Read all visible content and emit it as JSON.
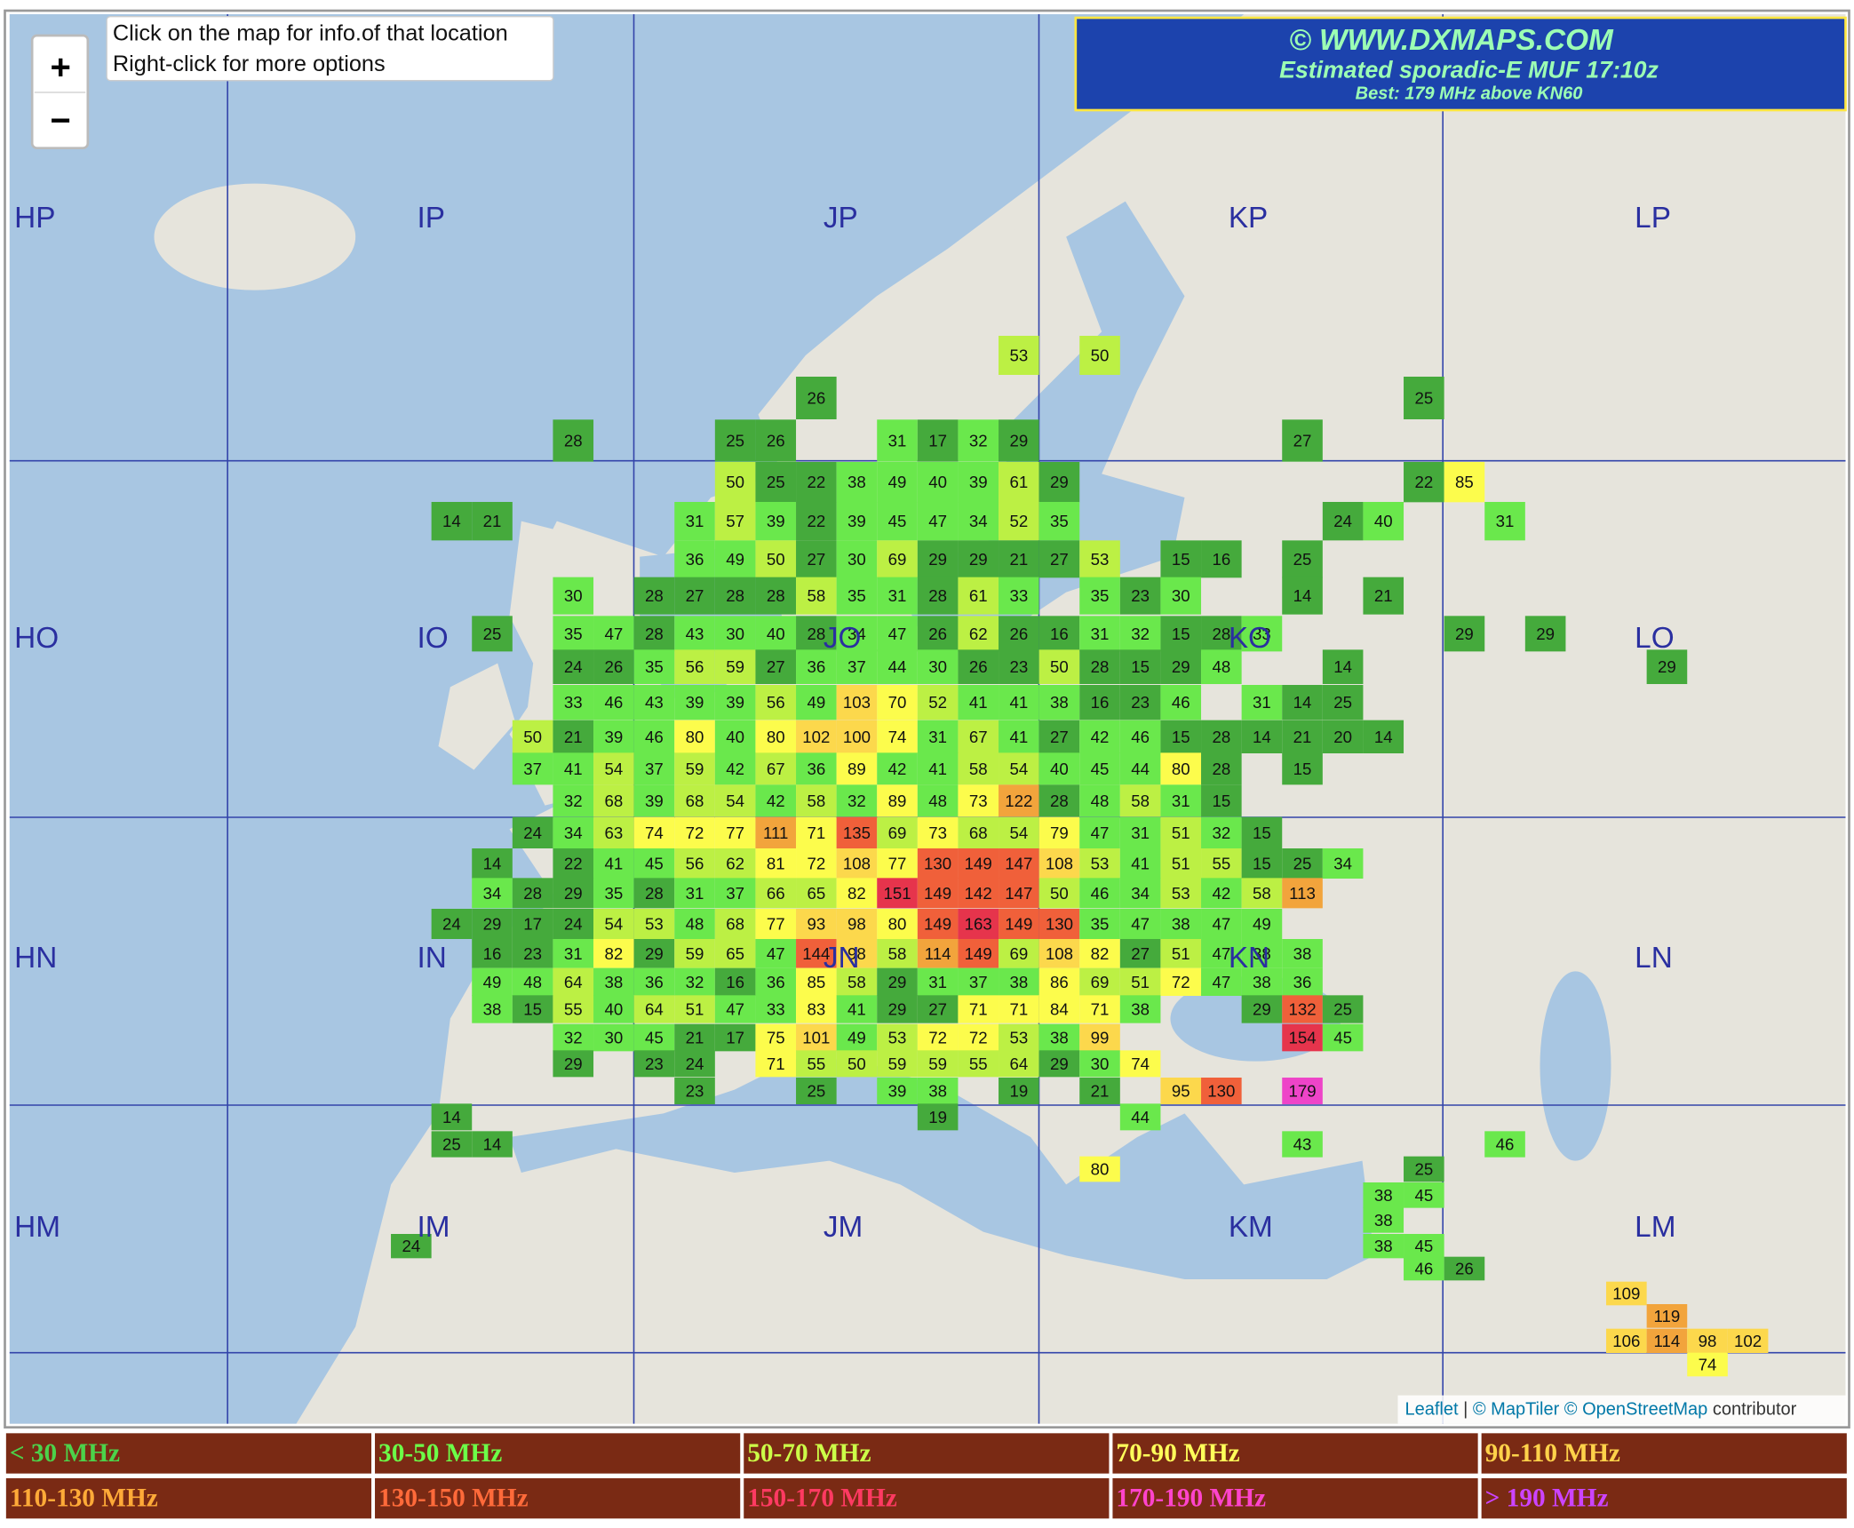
{
  "header": {
    "site": "© WWW.DXMAPS.COM",
    "title": "Estimated sporadic-E MUF 17:10z",
    "best": "Best: 179 MHz above KN60"
  },
  "tooltip": [
    "Click on the map for info.of that location",
    "Right-click for more options"
  ],
  "zoom": {
    "in": "+",
    "out": "−"
  },
  "attribution": {
    "leaflet": "Leaflet",
    "separator": "|",
    "maptiler": "© MapTiler",
    "osm": "© OpenStreetMap",
    "suffix": "contributor"
  },
  "grid_labels": [
    [
      "HP",
      "IP",
      "JP",
      "KP",
      "LP"
    ],
    [
      "HO",
      "IO",
      "JO",
      "KO",
      "LO"
    ],
    [
      "HN",
      "IN",
      "JN",
      "KN",
      "LN"
    ],
    [
      "HM",
      "IM",
      "JM",
      "KM",
      "LM"
    ]
  ],
  "legend": [
    {
      "label": "< 30 MHz",
      "color": "#4cd24a",
      "fill": "#45aa3c"
    },
    {
      "label": "30-50 MHz",
      "color": "#6cff48",
      "fill": "#6ae84c"
    },
    {
      "label": "50-70 MHz",
      "color": "#ccff48",
      "fill": "#bcf044"
    },
    {
      "label": "70-90 MHz",
      "color": "#ffff5a",
      "fill": "#fcfc4c"
    },
    {
      "label": "90-110 MHz",
      "color": "#ffd24a",
      "fill": "#fcd84c"
    },
    {
      "label": "110-130 MHz",
      "color": "#ffaa38",
      "fill": "#f2a43c"
    },
    {
      "label": "130-150 MHz",
      "color": "#ff6a3a",
      "fill": "#f0603a"
    },
    {
      "label": "150-170 MHz",
      "color": "#ff3a62",
      "fill": "#e6344c"
    },
    {
      "label": "170-190 MHz",
      "color": "#ff44cc",
      "fill": "#ee44c8"
    },
    {
      "label": "> 190 MHz",
      "color": "#cc44ff",
      "fill": "#bb44ee"
    }
  ],
  "cells": {
    "rows": [
      [
        null,
        null,
        null,
        null,
        null,
        null,
        null,
        null,
        null,
        null,
        null,
        null,
        null,
        null,
        null,
        53,
        null,
        50,
        null,
        null,
        null,
        null,
        null,
        null,
        null,
        null,
        null,
        null,
        null,
        null,
        null,
        null,
        null,
        null
      ],
      [
        null,
        null,
        null,
        null,
        null,
        null,
        null,
        null,
        null,
        null,
        26,
        null,
        null,
        null,
        null,
        null,
        null,
        null,
        null,
        null,
        null,
        null,
        null,
        null,
        null,
        25,
        null,
        null,
        null,
        null,
        null,
        null,
        null,
        null
      ],
      [
        null,
        null,
        null,
        null,
        28,
        null,
        null,
        null,
        25,
        26,
        null,
        null,
        31,
        17,
        32,
        29,
        null,
        null,
        null,
        null,
        null,
        null,
        27,
        null,
        null,
        null,
        null,
        null,
        null,
        null,
        null,
        null,
        null,
        null
      ],
      [
        null,
        null,
        null,
        null,
        null,
        null,
        null,
        null,
        50,
        25,
        22,
        38,
        49,
        40,
        39,
        61,
        29,
        null,
        null,
        null,
        null,
        null,
        null,
        null,
        null,
        22,
        85,
        null,
        null,
        null,
        null,
        null,
        null,
        null
      ],
      [
        null,
        14,
        21,
        null,
        null,
        null,
        null,
        31,
        57,
        39,
        22,
        39,
        45,
        47,
        34,
        52,
        35,
        null,
        null,
        null,
        null,
        null,
        null,
        24,
        40,
        null,
        null,
        31,
        null,
        null,
        null,
        null,
        null,
        null
      ],
      [
        null,
        null,
        null,
        null,
        null,
        null,
        null,
        36,
        49,
        50,
        27,
        30,
        69,
        29,
        29,
        21,
        27,
        53,
        null,
        15,
        16,
        null,
        25,
        null,
        null,
        null,
        null,
        null,
        null,
        null,
        null,
        null,
        null,
        null
      ],
      [
        null,
        null,
        null,
        null,
        30,
        null,
        28,
        27,
        28,
        28,
        58,
        35,
        31,
        28,
        61,
        33,
        null,
        35,
        23,
        30,
        null,
        null,
        14,
        null,
        21,
        null,
        null,
        null,
        null,
        null,
        null,
        null,
        null,
        null
      ],
      [
        null,
        null,
        25,
        null,
        35,
        47,
        28,
        43,
        30,
        40,
        28,
        34,
        47,
        26,
        62,
        26,
        16,
        31,
        32,
        15,
        28,
        33,
        null,
        null,
        null,
        null,
        29,
        null,
        29,
        null,
        null,
        null,
        null,
        null
      ],
      [
        null,
        null,
        null,
        null,
        24,
        26,
        35,
        56,
        59,
        27,
        36,
        37,
        44,
        30,
        26,
        23,
        50,
        28,
        15,
        29,
        48,
        null,
        null,
        14,
        null,
        null,
        null,
        null,
        null,
        null,
        null,
        29,
        null,
        null
      ],
      [
        null,
        null,
        null,
        null,
        33,
        46,
        43,
        39,
        39,
        56,
        49,
        103,
        70,
        52,
        41,
        41,
        38,
        16,
        23,
        46,
        null,
        31,
        14,
        25,
        null,
        null,
        null,
        null,
        null,
        null,
        null,
        null,
        null,
        null
      ],
      [
        null,
        null,
        null,
        50,
        21,
        39,
        46,
        80,
        40,
        80,
        102,
        100,
        74,
        31,
        67,
        41,
        27,
        42,
        46,
        15,
        28,
        14,
        21,
        20,
        14,
        null,
        null,
        null,
        null,
        null,
        null,
        null,
        null,
        null
      ],
      [
        null,
        null,
        null,
        37,
        41,
        54,
        37,
        59,
        42,
        67,
        36,
        89,
        42,
        41,
        58,
        54,
        40,
        45,
        44,
        80,
        28,
        null,
        15,
        null,
        null,
        null,
        null,
        null,
        null,
        null,
        null,
        null,
        null,
        null
      ],
      [
        null,
        null,
        null,
        null,
        32,
        68,
        39,
        68,
        54,
        42,
        58,
        32,
        89,
        48,
        73,
        122,
        28,
        48,
        58,
        31,
        15,
        null,
        null,
        null,
        null,
        null,
        null,
        null,
        null,
        null,
        null,
        null,
        null,
        null
      ],
      [
        null,
        null,
        null,
        24,
        34,
        63,
        74,
        72,
        77,
        111,
        71,
        135,
        69,
        73,
        68,
        54,
        79,
        47,
        31,
        51,
        32,
        15,
        null,
        null,
        null,
        null,
        null,
        null,
        null,
        null,
        null,
        null,
        null,
        null
      ],
      [
        null,
        null,
        14,
        null,
        22,
        41,
        45,
        56,
        62,
        81,
        72,
        108,
        77,
        130,
        149,
        147,
        108,
        53,
        41,
        51,
        55,
        15,
        25,
        34,
        null,
        null,
        null,
        null,
        null,
        null,
        null,
        null,
        null,
        null
      ],
      [
        null,
        null,
        34,
        28,
        29,
        35,
        28,
        31,
        37,
        66,
        65,
        82,
        151,
        149,
        142,
        147,
        50,
        46,
        34,
        53,
        42,
        58,
        113,
        null,
        null,
        null,
        null,
        null,
        null,
        null,
        null,
        null,
        null,
        null
      ],
      [
        null,
        24,
        29,
        17,
        24,
        54,
        53,
        48,
        68,
        77,
        93,
        98,
        80,
        149,
        163,
        149,
        130,
        35,
        47,
        38,
        47,
        49,
        null,
        null,
        null,
        null,
        null,
        null,
        null,
        null,
        null,
        null,
        null,
        null
      ],
      [
        null,
        null,
        16,
        23,
        31,
        82,
        29,
        59,
        65,
        47,
        144,
        98,
        58,
        114,
        149,
        69,
        108,
        82,
        27,
        51,
        47,
        38,
        38,
        null,
        null,
        null,
        null,
        null,
        null,
        null,
        null,
        null,
        null,
        null
      ],
      [
        null,
        null,
        49,
        48,
        64,
        38,
        36,
        32,
        16,
        36,
        85,
        58,
        29,
        31,
        37,
        38,
        86,
        69,
        51,
        72,
        47,
        38,
        36,
        null,
        null,
        null,
        null,
        null,
        null,
        null,
        null,
        null,
        null,
        null
      ],
      [
        null,
        null,
        38,
        15,
        55,
        40,
        64,
        51,
        47,
        33,
        83,
        41,
        29,
        27,
        71,
        71,
        84,
        71,
        38,
        null,
        null,
        29,
        132,
        25,
        null,
        null,
        null,
        null,
        null,
        null,
        null,
        null,
        null,
        null
      ],
      [
        null,
        null,
        null,
        null,
        32,
        30,
        45,
        21,
        17,
        75,
        101,
        49,
        53,
        72,
        72,
        53,
        38,
        99,
        null,
        null,
        null,
        null,
        154,
        45,
        null,
        null,
        null,
        null,
        null,
        null,
        null,
        null,
        null,
        null
      ],
      [
        null,
        null,
        null,
        null,
        29,
        null,
        23,
        24,
        null,
        71,
        55,
        50,
        59,
        59,
        55,
        64,
        29,
        30,
        74,
        null,
        null,
        null,
        null,
        null,
        null,
        null,
        null,
        null,
        null,
        null,
        null,
        null,
        null,
        null
      ],
      [
        null,
        null,
        null,
        null,
        null,
        null,
        null,
        23,
        null,
        null,
        25,
        null,
        39,
        38,
        null,
        19,
        null,
        21,
        null,
        95,
        130,
        null,
        179,
        null,
        null,
        null,
        null,
        null,
        null,
        null,
        null,
        null,
        null,
        null
      ],
      [
        null,
        14,
        null,
        null,
        null,
        null,
        null,
        null,
        null,
        null,
        null,
        null,
        null,
        19,
        null,
        null,
        null,
        null,
        44,
        null,
        null,
        null,
        null,
        null,
        null,
        null,
        null,
        null,
        null,
        null,
        null,
        null,
        null,
        null
      ],
      [
        null,
        25,
        14,
        null,
        null,
        null,
        null,
        null,
        null,
        null,
        null,
        null,
        null,
        null,
        null,
        null,
        null,
        null,
        null,
        null,
        null,
        null,
        43,
        null,
        null,
        null,
        null,
        46,
        null,
        null,
        null,
        null,
        null,
        null
      ],
      [
        null,
        null,
        null,
        null,
        null,
        null,
        null,
        null,
        null,
        null,
        null,
        null,
        null,
        null,
        null,
        null,
        null,
        80,
        null,
        null,
        null,
        null,
        null,
        null,
        null,
        25,
        null,
        null,
        null,
        null,
        null,
        null,
        null,
        null
      ],
      [
        null,
        null,
        null,
        null,
        null,
        null,
        null,
        null,
        null,
        null,
        null,
        null,
        null,
        null,
        null,
        null,
        null,
        null,
        null,
        null,
        null,
        null,
        null,
        null,
        38,
        45,
        null,
        null,
        null,
        null,
        null,
        null,
        null,
        null
      ],
      [
        null,
        null,
        null,
        null,
        null,
        null,
        null,
        null,
        null,
        null,
        null,
        null,
        null,
        null,
        null,
        null,
        null,
        null,
        null,
        null,
        null,
        null,
        null,
        null,
        38,
        null,
        null,
        null,
        null,
        null,
        null,
        null,
        null,
        null
      ],
      [
        24,
        null,
        null,
        null,
        null,
        null,
        null,
        null,
        null,
        null,
        null,
        null,
        null,
        null,
        null,
        null,
        null,
        null,
        null,
        null,
        null,
        null,
        null,
        null,
        38,
        45,
        null,
        null,
        null,
        null,
        null,
        null,
        null,
        null
      ],
      [
        null,
        null,
        null,
        null,
        null,
        null,
        null,
        null,
        null,
        null,
        null,
        null,
        null,
        null,
        null,
        null,
        null,
        null,
        null,
        null,
        null,
        null,
        null,
        null,
        null,
        46,
        26,
        null,
        null,
        null,
        null,
        null,
        null,
        null
      ],
      [
        null,
        null,
        null,
        null,
        null,
        null,
        null,
        null,
        null,
        null,
        null,
        null,
        null,
        null,
        null,
        null,
        null,
        null,
        null,
        null,
        null,
        null,
        null,
        null,
        null,
        null,
        null,
        null,
        null,
        null,
        109,
        null,
        null,
        null
      ],
      [
        null,
        null,
        null,
        null,
        null,
        null,
        null,
        null,
        null,
        null,
        null,
        null,
        null,
        null,
        null,
        null,
        null,
        null,
        null,
        null,
        null,
        null,
        null,
        null,
        null,
        null,
        null,
        null,
        null,
        null,
        null,
        119,
        null,
        null
      ],
      [
        null,
        null,
        null,
        null,
        null,
        null,
        null,
        null,
        null,
        null,
        null,
        null,
        null,
        null,
        null,
        null,
        null,
        null,
        null,
        null,
        null,
        null,
        null,
        null,
        null,
        null,
        null,
        null,
        null,
        null,
        106,
        114,
        98,
        102
      ],
      [
        null,
        null,
        null,
        null,
        null,
        null,
        null,
        null,
        null,
        null,
        null,
        null,
        null,
        null,
        null,
        null,
        null,
        null,
        null,
        null,
        null,
        null,
        null,
        null,
        null,
        null,
        null,
        null,
        null,
        null,
        null,
        null,
        74,
        null
      ]
    ]
  }
}
